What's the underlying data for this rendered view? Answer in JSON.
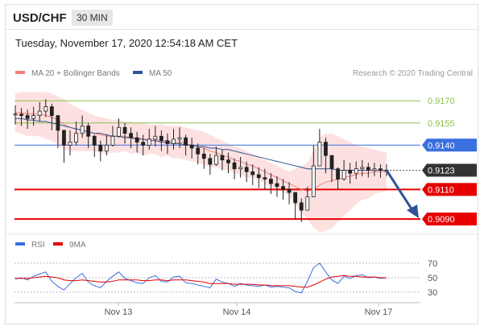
{
  "header": {
    "pair": "USD/CHF",
    "timeframe": "30 MIN",
    "datetime": "Tuesday, November 17, 2020 12:54:18 AM CET"
  },
  "colors": {
    "ma20": "#f08080",
    "ma50": "#2f5597",
    "resistance_green": "#8fbf4a",
    "support_red": "#e60000",
    "pivot_blue": "#3a6fe0",
    "candles": "#222222",
    "bollinger_fill": "#fdd9d9",
    "rsi": "#3a6fe0",
    "rsi_ma": "#e60000",
    "arrow": "#2f5597"
  },
  "legend": {
    "ma_bollinger": "MA 20 + Bollinger Bands",
    "ma50": "MA 50",
    "rsi": "RSI",
    "ma9": "9MA",
    "credit": "Research © 2020 Trading Central"
  },
  "chart_data": {
    "type": "line",
    "x_labels": [
      "Nov 13",
      "Nov 14",
      "Nov 17"
    ],
    "ylim": [
      0.9083,
      0.9181
    ],
    "levels": [
      {
        "label": "0.9170",
        "value": 0.917,
        "kind": "resistance"
      },
      {
        "label": "0.9155",
        "value": 0.9155,
        "kind": "resistance"
      },
      {
        "label": "0.9140",
        "value": 0.914,
        "kind": "pivot"
      },
      {
        "label": "0.9123",
        "value": 0.9123,
        "kind": "current"
      },
      {
        "label": "0.9110",
        "value": 0.911,
        "kind": "support"
      },
      {
        "label": "0.9090",
        "value": 0.909,
        "kind": "support"
      }
    ],
    "price_close": [
      0.9161,
      0.916,
      0.9158,
      0.916,
      0.9163,
      0.9166,
      0.916,
      0.915,
      0.914,
      0.9142,
      0.9148,
      0.9153,
      0.9146,
      0.914,
      0.9136,
      0.914,
      0.9146,
      0.9152,
      0.9148,
      0.9145,
      0.9142,
      0.914,
      0.9144,
      0.9146,
      0.9143,
      0.9141,
      0.9144,
      0.9145,
      0.914,
      0.9138,
      0.9134,
      0.9131,
      0.9127,
      0.9133,
      0.913,
      0.9128,
      0.9124,
      0.9125,
      0.9122,
      0.912,
      0.9118,
      0.9117,
      0.9114,
      0.9112,
      0.911,
      0.9108,
      0.9101,
      0.9096,
      0.9105,
      0.9126,
      0.9142,
      0.9133,
      0.9124,
      0.9117,
      0.9123,
      0.9121,
      0.9124,
      0.9125,
      0.9123,
      0.9124,
      0.9123,
      0.9123
    ],
    "price_high": [
      0.9167,
      0.9165,
      0.9164,
      0.9166,
      0.9169,
      0.9171,
      0.9168,
      0.9158,
      0.9148,
      0.915,
      0.9156,
      0.916,
      0.9155,
      0.9147,
      0.9143,
      0.9147,
      0.9153,
      0.9158,
      0.9155,
      0.9152,
      0.9149,
      0.9147,
      0.9151,
      0.9153,
      0.915,
      0.9148,
      0.9151,
      0.9152,
      0.9147,
      0.9145,
      0.9141,
      0.9138,
      0.9134,
      0.9139,
      0.9137,
      0.9135,
      0.9131,
      0.9132,
      0.9129,
      0.9127,
      0.9125,
      0.9124,
      0.9121,
      0.9119,
      0.9117,
      0.9115,
      0.9108,
      0.9104,
      0.9112,
      0.914,
      0.9151,
      0.9145,
      0.9132,
      0.9125,
      0.913,
      0.9128,
      0.9129,
      0.913,
      0.9128,
      0.9128,
      0.9127,
      0.9127
    ],
    "price_low": [
      0.9154,
      0.9153,
      0.9151,
      0.9153,
      0.9156,
      0.9159,
      0.915,
      0.9138,
      0.9128,
      0.9133,
      0.914,
      0.9145,
      0.9138,
      0.9132,
      0.9129,
      0.9133,
      0.9139,
      0.9145,
      0.9141,
      0.9138,
      0.9135,
      0.9133,
      0.9137,
      0.9139,
      0.9136,
      0.9134,
      0.9137,
      0.9138,
      0.9133,
      0.9131,
      0.9127,
      0.9124,
      0.912,
      0.9126,
      0.9123,
      0.9121,
      0.9117,
      0.9118,
      0.9115,
      0.9113,
      0.9111,
      0.911,
      0.9107,
      0.9105,
      0.9103,
      0.91,
      0.909,
      0.9088,
      0.9097,
      0.911,
      0.913,
      0.9121,
      0.9115,
      0.911,
      0.9116,
      0.9114,
      0.9117,
      0.9119,
      0.9118,
      0.9119,
      0.9118,
      0.9119
    ],
    "ma20": [
      0.9162,
      0.9162,
      0.9161,
      0.9161,
      0.9161,
      0.916,
      0.9159,
      0.9157,
      0.9154,
      0.9152,
      0.9151,
      0.915,
      0.9149,
      0.9148,
      0.9147,
      0.9146,
      0.9146,
      0.9146,
      0.9146,
      0.9145,
      0.9145,
      0.9144,
      0.9144,
      0.9144,
      0.9143,
      0.9143,
      0.9142,
      0.9142,
      0.9141,
      0.914,
      0.9139,
      0.9138,
      0.9136,
      0.9135,
      0.9133,
      0.9132,
      0.913,
      0.9129,
      0.9127,
      0.9126,
      0.9124,
      0.9122,
      0.912,
      0.9118,
      0.9116,
      0.9114,
      0.9112,
      0.911,
      0.9109,
      0.911,
      0.9113,
      0.9115,
      0.9116,
      0.9117,
      0.9118,
      0.9119,
      0.912,
      0.9121,
      0.9121,
      0.9122,
      0.9122,
      0.9122
    ],
    "ma50": [
      0.9158,
      0.9158,
      0.9157,
      0.9157,
      0.9156,
      0.9156,
      0.9155,
      0.9154,
      0.9153,
      0.9152,
      0.9151,
      0.915,
      0.9149,
      0.9148,
      0.9148,
      0.9147,
      0.9146,
      0.9146,
      0.9145,
      0.9145,
      0.9144,
      0.9144,
      0.9143,
      0.9143,
      0.9142,
      0.9142,
      0.9141,
      0.9141,
      0.914,
      0.914,
      0.9139,
      0.9139,
      0.9138,
      0.9138,
      0.9137,
      0.9137,
      0.9136,
      0.9135,
      0.9134,
      0.9133,
      0.9132,
      0.9131,
      0.913,
      0.9129,
      0.9128,
      0.9127,
      0.9126,
      0.9125,
      0.9124,
      0.9124,
      0.9124,
      0.9124,
      0.9124,
      0.9123,
      0.9123,
      0.9123,
      0.9123,
      0.9123,
      0.9123,
      0.9123,
      0.9123,
      0.9123
    ],
    "bb_upper": [
      0.9175,
      0.9176,
      0.9176,
      0.9176,
      0.9176,
      0.9176,
      0.9175,
      0.9173,
      0.9171,
      0.9168,
      0.9166,
      0.9164,
      0.9162,
      0.916,
      0.9159,
      0.9158,
      0.9157,
      0.9157,
      0.9156,
      0.9156,
      0.9155,
      0.9155,
      0.9154,
      0.9154,
      0.9154,
      0.9153,
      0.9153,
      0.9153,
      0.9152,
      0.9151,
      0.915,
      0.9149,
      0.9147,
      0.9145,
      0.9143,
      0.9141,
      0.9139,
      0.9138,
      0.9136,
      0.9134,
      0.9132,
      0.913,
      0.9128,
      0.9126,
      0.9124,
      0.9122,
      0.9124,
      0.9126,
      0.9128,
      0.9136,
      0.9145,
      0.9148,
      0.9148,
      0.9146,
      0.9144,
      0.9142,
      0.914,
      0.9139,
      0.9138,
      0.9137,
      0.9136,
      0.9135
    ],
    "bb_lower": [
      0.9149,
      0.9148,
      0.9146,
      0.9146,
      0.9146,
      0.9144,
      0.9143,
      0.9141,
      0.9137,
      0.9136,
      0.9136,
      0.9136,
      0.9136,
      0.9136,
      0.9135,
      0.9134,
      0.9135,
      0.9135,
      0.9136,
      0.9134,
      0.9135,
      0.9133,
      0.9134,
      0.9134,
      0.9132,
      0.9133,
      0.9131,
      0.9131,
      0.913,
      0.9129,
      0.9128,
      0.9127,
      0.9125,
      0.9125,
      0.9123,
      0.9123,
      0.9121,
      0.912,
      0.9118,
      0.9118,
      0.9116,
      0.9114,
      0.9112,
      0.911,
      0.9108,
      0.9106,
      0.91,
      0.9094,
      0.909,
      0.9084,
      0.9081,
      0.9082,
      0.9084,
      0.9088,
      0.9092,
      0.9096,
      0.91,
      0.9103,
      0.9104,
      0.9107,
      0.9108,
      0.9109
    ],
    "forecast": {
      "from": 0.9123,
      "to": 0.909
    },
    "rsi": {
      "ylim": [
        20,
        80
      ],
      "ticks": [
        70,
        50,
        30
      ],
      "rsi_values": [
        48,
        50,
        47,
        52,
        55,
        58,
        45,
        38,
        33,
        42,
        50,
        56,
        44,
        39,
        36,
        45,
        52,
        58,
        49,
        46,
        43,
        42,
        50,
        53,
        45,
        44,
        51,
        52,
        43,
        42,
        40,
        38,
        36,
        48,
        44,
        42,
        38,
        42,
        40,
        39,
        38,
        40,
        37,
        38,
        37,
        36,
        31,
        29,
        45,
        64,
        70,
        58,
        47,
        42,
        52,
        49,
        53,
        54,
        50,
        51,
        49,
        50
      ],
      "ma9_values": [
        49,
        49,
        49,
        50,
        51,
        52,
        51,
        50,
        47,
        46,
        46,
        47,
        46,
        45,
        44,
        44,
        45,
        47,
        47,
        47,
        47,
        46,
        46,
        47,
        47,
        46,
        47,
        47,
        47,
        46,
        45,
        44,
        42,
        42,
        42,
        42,
        41,
        41,
        41,
        41,
        40,
        40,
        39,
        39,
        39,
        39,
        38,
        37,
        37,
        40,
        44,
        48,
        51,
        52,
        53,
        52,
        52,
        51,
        51,
        51,
        50,
        50
      ]
    }
  }
}
